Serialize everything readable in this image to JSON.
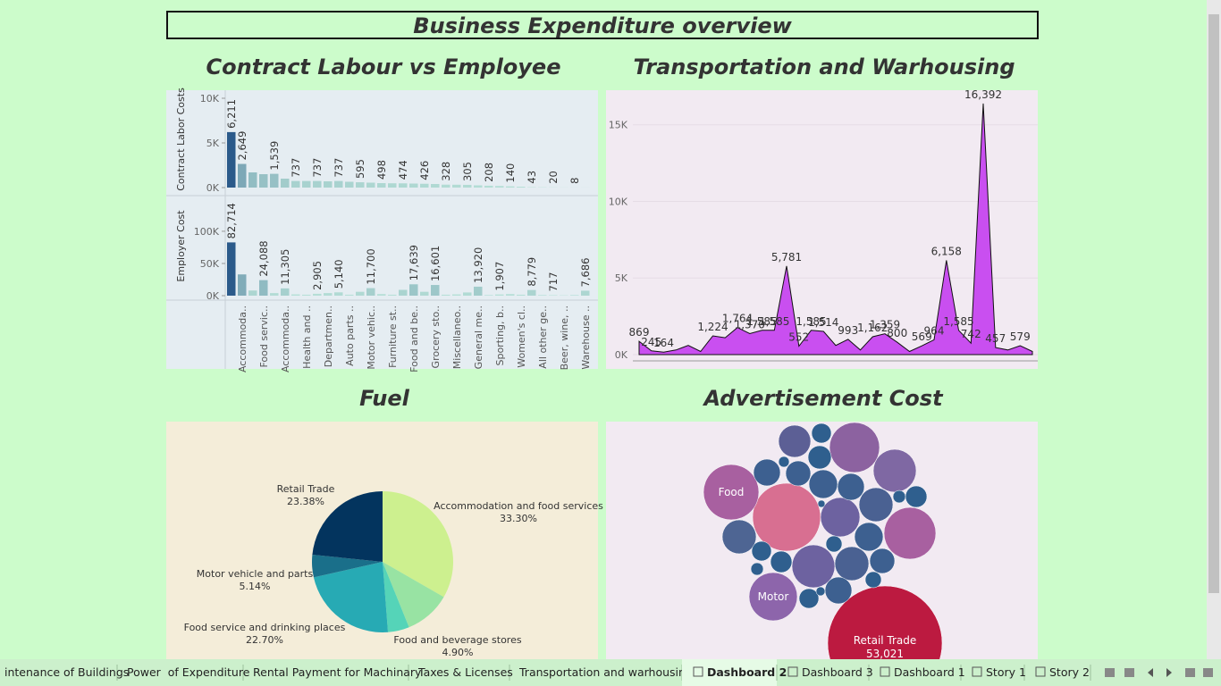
{
  "title": "Business Expenditure overview",
  "chart_data": [
    {
      "type": "bar",
      "title": "Contract Labour vs Employee",
      "categories": [
        null,
        "Accommoda..",
        null,
        "Food servic..",
        null,
        "Accommoda..",
        null,
        "Health and ..",
        null,
        "Departmen..",
        null,
        "Auto parts ..",
        null,
        "Motor vehic..",
        null,
        "Furniture st..",
        null,
        "Food and be..",
        null,
        "Grocery sto..",
        null,
        "Miscellaneo..",
        null,
        "General me..",
        null,
        "Sporting, b..",
        null,
        "Women's cl..",
        null,
        "All other ge..",
        null,
        "Beer, wine, ..",
        null,
        "Warehouse .."
      ],
      "color_range": [
        "#b9e2d8",
        "#2b5a8a"
      ],
      "series": [
        {
          "name": "Contract Labor Costs",
          "values": [
            6211,
            2649,
            1700,
            1500,
            1539,
            1000,
            737,
            737,
            737,
            700,
            737,
            650,
            595,
            550,
            498,
            480,
            474,
            450,
            426,
            400,
            328,
            320,
            305,
            250,
            208,
            180,
            140,
            100,
            43,
            30,
            20,
            12,
            8,
            5
          ],
          "value_labels": [
            "6,211",
            "2,649",
            null,
            null,
            "1,539",
            null,
            "737",
            null,
            "737",
            null,
            "737",
            null,
            "595",
            null,
            "498",
            null,
            "474",
            null,
            "426",
            null,
            "328",
            null,
            "305",
            null,
            "208",
            null,
            "140",
            null,
            "43",
            null,
            "20",
            null,
            "8",
            null
          ],
          "ylim": [
            0,
            10800
          ],
          "yticks": [
            {
              "value": 0,
              "label": "0K"
            },
            {
              "value": 5000,
              "label": "5K"
            },
            {
              "value": 10000,
              "label": "10K"
            }
          ]
        },
        {
          "name": "Employer Cost",
          "values": [
            82714,
            33000,
            8000,
            24088,
            4000,
            11305,
            2000,
            1500,
            2905,
            4000,
            5140,
            1500,
            6000,
            11700,
            2500,
            1500,
            9000,
            17639,
            6000,
            16601,
            1500,
            2000,
            5000,
            13920,
            1000,
            1907,
            2500,
            1500,
            8779,
            1000,
            717,
            500,
            1000,
            7686
          ],
          "value_labels": [
            "82,714",
            null,
            null,
            "24,088",
            null,
            "11,305",
            null,
            null,
            "2,905",
            null,
            "5,140",
            null,
            null,
            "11,700",
            null,
            null,
            null,
            "17,639",
            null,
            "16,601",
            null,
            null,
            null,
            "13,920",
            null,
            "1,907",
            null,
            null,
            "8,779",
            null,
            "717",
            null,
            null,
            "7,686"
          ],
          "ylim": [
            0,
            154000
          ],
          "yticks": [
            {
              "value": 0,
              "label": "0K"
            },
            {
              "value": 50000,
              "label": "50K"
            },
            {
              "value": 100000,
              "label": "100K"
            }
          ]
        }
      ]
    },
    {
      "type": "area",
      "title": "Transportation and Warhousing",
      "color": "#c94ff0",
      "values": [
        869,
        245,
        164,
        300,
        600,
        200,
        1224,
        1100,
        1764,
        1370,
        1585,
        1585,
        5781,
        552,
        1585,
        1514,
        600,
        993,
        300,
        1162,
        1359,
        800,
        200,
        569,
        964,
        6158,
        1585,
        742,
        16392,
        457,
        300,
        579,
        200
      ],
      "value_labels": [
        "869",
        "245",
        "164",
        null,
        null,
        null,
        "1,224",
        null,
        "1,764",
        "1,370",
        "1,585",
        "1,585",
        "5,781",
        "552",
        "1,585",
        "1,514",
        null,
        "993",
        null,
        "1,162",
        "1,359",
        "800",
        null,
        "569",
        "964",
        "6,158",
        "1,585",
        "742",
        "16,392",
        "457",
        null,
        "579",
        null
      ],
      "ylim": [
        -760,
        17200
      ],
      "yticks": [
        {
          "value": 0,
          "label": "0K"
        },
        {
          "value": 5000,
          "label": "5K"
        },
        {
          "value": 10000,
          "label": "10K"
        },
        {
          "value": 15000,
          "label": "15K"
        }
      ],
      "grid": true
    },
    {
      "type": "pie",
      "title": "Fuel",
      "categories": [
        "Accommodation and food services",
        null,
        "Food and beverage stores",
        "Food service and drinking places",
        "Motor vehicle and parts",
        "Retail Trade"
      ],
      "values": [
        33.3,
        10.58,
        4.9,
        22.7,
        5.14,
        23.38
      ],
      "value_labels": [
        "33.30%",
        null,
        "4.90%",
        "22.70%",
        "5.14%",
        "23.38%"
      ],
      "colors": [
        "#cdf08f",
        "#98e3a3",
        "#55d4b8",
        "#27aab4",
        "#1a6f8a",
        "#03345e"
      ]
    },
    {
      "type": "bubble",
      "title": "Advertisement Cost",
      "categories": [
        "Retail Trade",
        null,
        "Food",
        "Motor",
        null,
        null,
        null,
        null,
        null,
        null,
        null,
        null,
        null,
        null,
        null,
        null,
        null,
        null,
        null,
        null,
        null,
        null,
        null,
        null,
        null,
        null,
        null,
        null,
        null,
        null,
        null,
        null,
        null
      ],
      "values": [
        53021,
        18685,
        12435,
        9433,
        10882,
        10144,
        7453,
        4192,
        7453,
        6263,
        4671,
        4671,
        4671,
        3312,
        3312,
        2911,
        2911,
        2536,
        2187,
        2911,
        2536,
        1863,
        1566,
        1863,
        1566,
        1566,
        1048,
        1048,
        634,
        466,
        634,
        324,
        207
      ],
      "value_labels": [
        "53,021",
        null,
        null,
        null,
        null,
        null,
        null,
        null,
        null,
        null,
        null,
        null,
        null,
        null,
        null,
        null,
        null,
        null,
        null,
        null,
        null,
        null,
        null,
        null,
        null,
        null,
        null,
        null,
        null,
        null,
        null,
        null,
        null
      ],
      "colors": [
        "#bc1a40",
        "#d86f91",
        "#a860a0",
        "#8d65ab",
        "#a860a0",
        "#8c62a0",
        "#7f68a3",
        "#5c5f95",
        "#6d62a0",
        "#6d62a0",
        "#4e6593",
        "#4a6192",
        "#4a6192",
        "#3d6090",
        "#3d6090",
        "#3d6090",
        "#3d6090",
        "#3d6090",
        "#2f5f8e",
        "#3d6090",
        "#3d6090",
        "#2f5f8e",
        "#2f5f8e",
        "#2f5f8e",
        "#2f5f8e",
        "#2f5f8e",
        "#2f5f8e",
        "#2f5f8e",
        "#2f5f8e",
        "#2f5f8e",
        "#2f5f8e",
        "#2f5f8e",
        "#2f5f8e"
      ]
    }
  ],
  "tabs": [
    "intenance of Buildings",
    "Power  of Expenditure",
    "Rental Payment for Machinary",
    "Taxes & Licenses",
    "Transportation and warhousing",
    "Dashboard 2",
    "Dashboard 3",
    "Dashboard 1",
    "Story 1",
    "Story 2"
  ],
  "active_tab": 5
}
